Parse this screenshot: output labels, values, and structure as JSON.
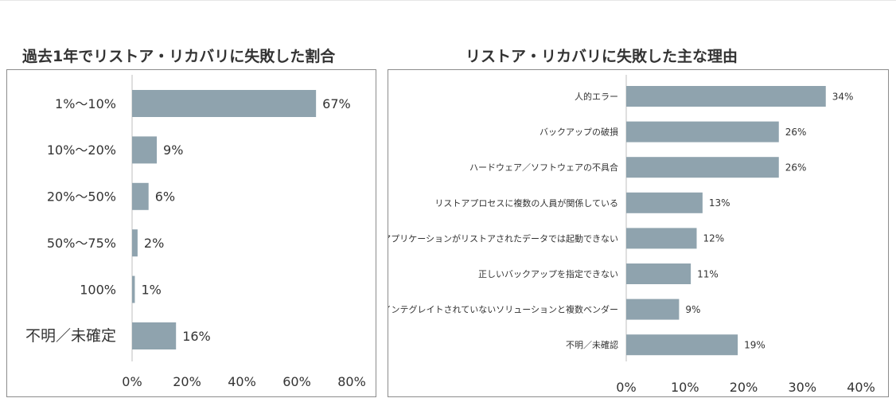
{
  "charts": [
    {
      "type": "bar",
      "orientation": "horizontal",
      "title": "過去1年でリストア・リカバリに失敗した割合",
      "categories": [
        "1%〜10%",
        "10%〜20%",
        "20%〜50%",
        "50%〜75%",
        "100%",
        "不明／未確定"
      ],
      "values": [
        67,
        9,
        6,
        2,
        1,
        16
      ],
      "value_labels": [
        "67%",
        "9%",
        "6%",
        "2%",
        "1%",
        "16%"
      ],
      "xticks": [
        "0%",
        "20%",
        "40%",
        "60%",
        "80%"
      ],
      "xlim": [
        0,
        80
      ],
      "grid": false,
      "bar_color": "#8fa3ae"
    },
    {
      "type": "bar",
      "orientation": "horizontal",
      "title": "リストア・リカバリに失敗した主な理由",
      "categories": [
        "人的エラー",
        "バックアップの破損",
        "ハードウェア／ソフトウェアの不具合",
        "リストアプロセスに複数の人員が関係している",
        "アプリケーションがリストアされたデータでは起動できない",
        "正しいバックアップを指定できない",
        "インテグレイトされていないソリューションと複数ベンダー",
        "不明／未確認"
      ],
      "values": [
        34,
        26,
        26,
        13,
        12,
        11,
        9,
        19
      ],
      "value_labels": [
        "34%",
        "26%",
        "26%",
        "13%",
        "12%",
        "11%",
        "9%",
        "19%"
      ],
      "xticks": [
        "0%",
        "10%",
        "20%",
        "30%",
        "40%"
      ],
      "xlim": [
        0,
        40
      ],
      "grid": false,
      "bar_color": "#8fa3ae"
    }
  ]
}
